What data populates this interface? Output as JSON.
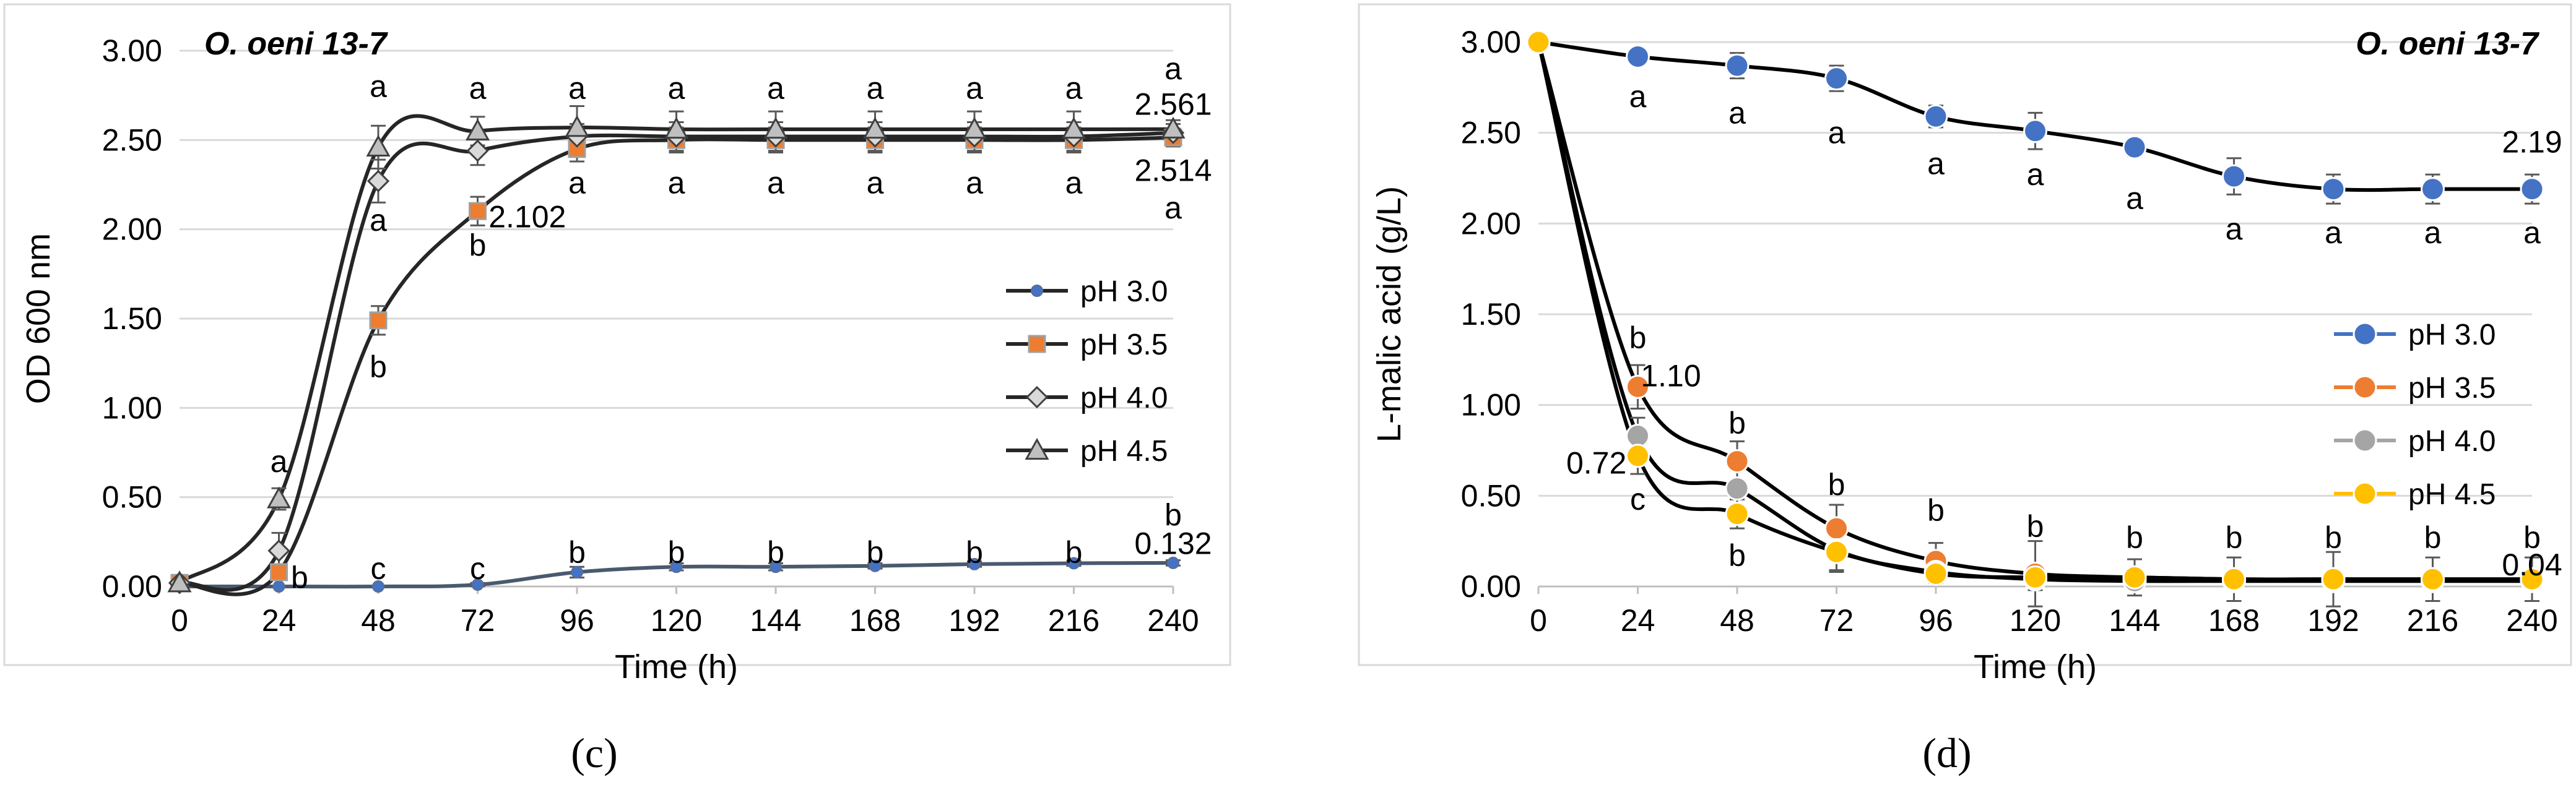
{
  "figure": {
    "panel_labels": [
      "(c)",
      "(d)"
    ]
  },
  "chart_data": [
    {
      "type": "line",
      "panel": "c",
      "title": "O. oeni 13-7",
      "xlabel": "Time (h)",
      "ylabel": "OD 600 nm",
      "x": [
        0,
        24,
        48,
        72,
        96,
        120,
        144,
        168,
        192,
        216,
        240
      ],
      "x_ticks": [
        "0",
        "24",
        "48",
        "72",
        "96",
        "120",
        "144",
        "168",
        "192",
        "216",
        "240"
      ],
      "ylim": [
        0,
        3
      ],
      "y_ticks": [
        "0.00",
        "0.50",
        "1.00",
        "1.50",
        "2.00",
        "2.50",
        "3.00"
      ],
      "legend": {
        "position": "right"
      },
      "series": [
        {
          "name": "pH 3.0",
          "color": "#4472C4",
          "marker": "circle-small",
          "line_color": "#4A5A6E",
          "values": [
            0.0,
            0.0,
            0.0,
            0.01,
            0.08,
            0.11,
            0.11,
            0.115,
            0.125,
            0.13,
            0.132
          ],
          "errors": [
            0,
            0,
            0,
            0.01,
            0.03,
            0.02,
            0.02,
            0.015,
            0.015,
            0.015,
            0.015
          ]
        },
        {
          "name": "pH 3.5",
          "color": "#ED7D31",
          "marker": "square",
          "line_color": "#262626",
          "values": [
            0.02,
            0.08,
            1.49,
            2.102,
            2.45,
            2.5,
            2.5,
            2.5,
            2.5,
            2.5,
            2.514
          ],
          "errors": [
            0,
            0.04,
            0.08,
            0.08,
            0.07,
            0.07,
            0.07,
            0.07,
            0.07,
            0.07,
            0.05
          ]
        },
        {
          "name": "pH 4.0",
          "color": "#A5A5A5",
          "marker": "diamond",
          "line_color": "#262626",
          "values": [
            0.02,
            0.2,
            2.27,
            2.44,
            2.52,
            2.52,
            2.52,
            2.52,
            2.52,
            2.52,
            2.54
          ],
          "errors": [
            0,
            0.1,
            0.12,
            0.08,
            0.07,
            0.08,
            0.08,
            0.08,
            0.08,
            0.08,
            0.05
          ]
        },
        {
          "name": "pH 4.5",
          "color": "#A5A5A5",
          "marker": "triangle",
          "line_color": "#262626",
          "values": [
            0.02,
            0.49,
            2.46,
            2.55,
            2.57,
            2.56,
            2.56,
            2.56,
            2.56,
            2.56,
            2.561
          ],
          "errors": [
            0,
            0.06,
            0.12,
            0.08,
            0.12,
            0.1,
            0.1,
            0.1,
            0.1,
            0.1,
            0.05
          ]
        }
      ],
      "annotations": [
        {
          "text": "a",
          "x": 24,
          "y": 0.7
        },
        {
          "text": "a",
          "x": 48,
          "y": 2.8
        },
        {
          "text": "a",
          "x": 48,
          "y": 2.05
        },
        {
          "text": "b",
          "x": 48,
          "y": 1.23
        },
        {
          "text": "a",
          "x": 72,
          "y": 2.79
        },
        {
          "text": "b",
          "x": 72,
          "y": 1.91
        },
        {
          "text": "a",
          "x": 96,
          "y": 2.79
        },
        {
          "text": "a",
          "x": 96,
          "y": 2.26
        },
        {
          "text": "a",
          "x": 120,
          "y": 2.79
        },
        {
          "text": "a",
          "x": 120,
          "y": 2.26
        },
        {
          "text": "a",
          "x": 144,
          "y": 2.79
        },
        {
          "text": "a",
          "x": 144,
          "y": 2.26
        },
        {
          "text": "a",
          "x": 168,
          "y": 2.79
        },
        {
          "text": "a",
          "x": 168,
          "y": 2.26
        },
        {
          "text": "a",
          "x": 192,
          "y": 2.79
        },
        {
          "text": "a",
          "x": 192,
          "y": 2.26
        },
        {
          "text": "a",
          "x": 216,
          "y": 2.79
        },
        {
          "text": "a",
          "x": 216,
          "y": 2.26
        },
        {
          "text": "a",
          "x": 240,
          "y": 2.9
        },
        {
          "text": "2.561",
          "x": 240,
          "y": 2.7
        },
        {
          "text": "2.514",
          "x": 240,
          "y": 2.33
        },
        {
          "text": "a",
          "x": 240,
          "y": 2.12
        },
        {
          "text": "2.102",
          "x": 84,
          "y": 2.07
        },
        {
          "text": "b",
          "x": 29,
          "y": 0.05
        },
        {
          "text": "c",
          "x": 48,
          "y": 0.1
        },
        {
          "text": "c",
          "x": 72,
          "y": 0.1
        },
        {
          "text": "b",
          "x": 96,
          "y": 0.19
        },
        {
          "text": "b",
          "x": 120,
          "y": 0.19
        },
        {
          "text": "b",
          "x": 144,
          "y": 0.19
        },
        {
          "text": "b",
          "x": 168,
          "y": 0.19
        },
        {
          "text": "b",
          "x": 192,
          "y": 0.19
        },
        {
          "text": "b",
          "x": 216,
          "y": 0.19
        },
        {
          "text": "b",
          "x": 240,
          "y": 0.4
        },
        {
          "text": "0.132",
          "x": 240,
          "y": 0.24
        }
      ]
    },
    {
      "type": "line",
      "panel": "d",
      "title": "O. oeni 13-7",
      "xlabel": "Time (h)",
      "ylabel": "L-malic acid (g/L)",
      "x": [
        0,
        24,
        48,
        72,
        96,
        120,
        144,
        168,
        192,
        216,
        240
      ],
      "x_ticks": [
        "0",
        "24",
        "48",
        "72",
        "96",
        "120",
        "144",
        "168",
        "192",
        "216",
        "240"
      ],
      "ylim": [
        0,
        3
      ],
      "y_ticks": [
        "0.00",
        "0.50",
        "1.00",
        "1.50",
        "2.00",
        "2.50",
        "3.00"
      ],
      "legend": {
        "position": "right"
      },
      "series": [
        {
          "name": "pH 3.0",
          "color": "#4472C4",
          "marker": "circle",
          "line_color": "#000000",
          "values": [
            3.0,
            2.92,
            2.87,
            2.8,
            2.59,
            2.51,
            2.42,
            2.26,
            2.19,
            2.19,
            2.19
          ],
          "errors": [
            0,
            0.04,
            0.07,
            0.07,
            0.06,
            0.1,
            0.05,
            0.1,
            0.08,
            0.08,
            0.08
          ]
        },
        {
          "name": "pH 3.5",
          "color": "#ED7D31",
          "marker": "circle",
          "line_color": "#000000",
          "values": [
            3.0,
            1.1,
            0.69,
            0.32,
            0.14,
            0.07,
            0.05,
            0.04,
            0.04,
            0.04,
            0.04
          ],
          "errors": [
            0,
            0.12,
            0.11,
            0.13,
            0.1,
            0.18,
            0.1,
            0.12,
            0.15,
            0.12,
            0.12
          ]
        },
        {
          "name": "pH 4.0",
          "color": "#A5A5A5",
          "marker": "circle",
          "line_color": "#000000",
          "values": [
            3.0,
            0.83,
            0.54,
            0.2,
            0.08,
            0.04,
            0.03,
            0.03,
            0.03,
            0.03,
            0.03
          ],
          "errors": [
            0,
            0.1,
            0.1,
            0.12,
            0.06,
            0.06,
            0.04,
            0.04,
            0.04,
            0.04,
            0.04
          ]
        },
        {
          "name": "pH 4.5",
          "color": "#FFC000",
          "marker": "circle",
          "line_color": "#000000",
          "values": [
            3.0,
            0.72,
            0.4,
            0.19,
            0.07,
            0.05,
            0.05,
            0.04,
            0.04,
            0.04,
            0.04
          ],
          "errors": [
            0,
            0.1,
            0.08,
            0.1,
            0.05,
            0.05,
            0.04,
            0.04,
            0.04,
            0.04,
            0.04
          ]
        }
      ],
      "annotations": [
        {
          "text": "a",
          "x": 24,
          "y": 2.7
        },
        {
          "text": "a",
          "x": 48,
          "y": 2.61
        },
        {
          "text": "a",
          "x": 72,
          "y": 2.5
        },
        {
          "text": "a",
          "x": 96,
          "y": 2.33
        },
        {
          "text": "a",
          "x": 120,
          "y": 2.27
        },
        {
          "text": "a",
          "x": 144,
          "y": 2.14
        },
        {
          "text": "a",
          "x": 168,
          "y": 1.97
        },
        {
          "text": "a",
          "x": 192,
          "y": 1.95
        },
        {
          "text": "a",
          "x": 216,
          "y": 1.95
        },
        {
          "text": "a",
          "x": 240,
          "y": 1.95
        },
        {
          "text": "2.19",
          "x": 240,
          "y": 2.45
        },
        {
          "text": "b",
          "x": 24,
          "y": 1.37
        },
        {
          "text": "1.10",
          "x": 32,
          "y": 1.16
        },
        {
          "text": "0.72",
          "x": 14,
          "y": 0.68
        },
        {
          "text": "c",
          "x": 24,
          "y": 0.48
        },
        {
          "text": "b",
          "x": 48,
          "y": 0.9
        },
        {
          "text": "b",
          "x": 48,
          "y": 0.17
        },
        {
          "text": "b",
          "x": 72,
          "y": 0.56
        },
        {
          "text": "b",
          "x": 96,
          "y": 0.42
        },
        {
          "text": "b",
          "x": 120,
          "y": 0.33
        },
        {
          "text": "b",
          "x": 144,
          "y": 0.27
        },
        {
          "text": "b",
          "x": 168,
          "y": 0.27
        },
        {
          "text": "b",
          "x": 192,
          "y": 0.27
        },
        {
          "text": "b",
          "x": 216,
          "y": 0.27
        },
        {
          "text": "b",
          "x": 240,
          "y": 0.27
        },
        {
          "text": "0.04",
          "x": 240,
          "y": 0.12
        }
      ]
    }
  ]
}
